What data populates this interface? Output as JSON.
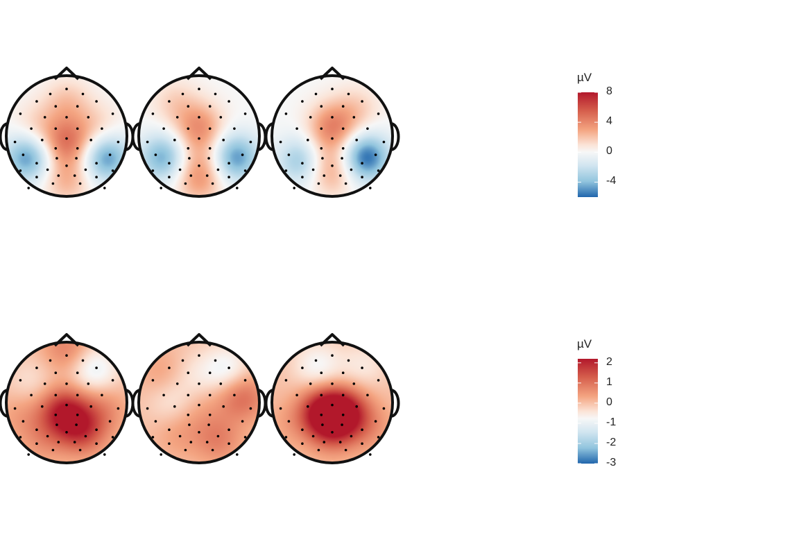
{
  "chart_data": [
    {
      "type": "heatmap",
      "title": "",
      "maps": 3,
      "legend": {
        "unit": "µV",
        "ticks": [
          8,
          4,
          0,
          -4
        ],
        "range": [
          -6,
          8
        ],
        "colors": [
          "#b2182b",
          "#ef8a62",
          "#fddbc7",
          "#f7f7f7",
          "#d1e5f0",
          "#67a9cf",
          "#2166ac"
        ],
        "placement": "right"
      },
      "topographies": [
        {
          "sources": [
            [
              0.0,
              0.1,
              4.5
            ],
            [
              -0.65,
              0.35,
              -5
            ],
            [
              0.65,
              0.35,
              -5
            ],
            [
              -0.5,
              -0.15,
              1.5
            ],
            [
              0.5,
              -0.15,
              1.5
            ],
            [
              0.0,
              0.72,
              2.5
            ],
            [
              0.0,
              -0.55,
              2
            ]
          ]
        },
        {
          "sources": [
            [
              0.0,
              -0.15,
              3.5
            ],
            [
              -0.6,
              0.35,
              -4.5
            ],
            [
              0.6,
              0.35,
              -5
            ],
            [
              0.0,
              0.72,
              3
            ],
            [
              0.0,
              0.35,
              1.5
            ],
            [
              -0.4,
              -0.55,
              1.5
            ]
          ]
        },
        {
          "sources": [
            [
              0.0,
              -0.15,
              4
            ],
            [
              -0.5,
              0.4,
              -4
            ],
            [
              0.55,
              0.35,
              -6
            ],
            [
              0.0,
              0.6,
              2.5
            ],
            [
              -0.2,
              0.35,
              1.5
            ],
            [
              0.4,
              -0.45,
              1.5
            ]
          ]
        }
      ]
    },
    {
      "type": "heatmap",
      "title": "",
      "maps": 3,
      "legend": {
        "unit": "µV",
        "ticks": [
          2,
          1,
          0,
          -1,
          -2,
          -3
        ],
        "range": [
          -3,
          2.2
        ],
        "colors": [
          "#b2182b",
          "#ef8a62",
          "#fddbc7",
          "#f7f7f7",
          "#d1e5f0",
          "#67a9cf",
          "#2166ac"
        ],
        "placement": "right"
      },
      "topographies": [
        {
          "sources": [
            [
              -0.05,
              0.15,
              2.0
            ],
            [
              0.25,
              0.45,
              1.5
            ],
            [
              0.45,
              -0.55,
              -1.0
            ],
            [
              0.0,
              -0.9,
              0.8
            ],
            [
              -0.6,
              -0.35,
              -0.4
            ],
            [
              -0.75,
              0.2,
              0.4
            ],
            [
              -0.4,
              0.6,
              0.5
            ],
            [
              0.6,
              0.1,
              0.6
            ]
          ]
        },
        {
          "sources": [
            [
              0.7,
              -0.1,
              1.1
            ],
            [
              0.45,
              -0.55,
              -0.9
            ],
            [
              -0.1,
              -0.45,
              -0.4
            ],
            [
              -0.6,
              -0.5,
              0.4
            ],
            [
              0.3,
              0.6,
              0.8
            ],
            [
              -0.35,
              0.5,
              0.4
            ],
            [
              -0.45,
              0.0,
              -0.5
            ],
            [
              0.0,
              0.1,
              0.3
            ]
          ]
        },
        {
          "sources": [
            [
              -0.15,
              0.15,
              2.2
            ],
            [
              0.2,
              0.15,
              2.0
            ],
            [
              0.0,
              0.45,
              1.0
            ],
            [
              -0.25,
              -0.6,
              -0.8
            ],
            [
              0.5,
              -0.6,
              -0.5
            ],
            [
              -0.7,
              0.35,
              0.3
            ],
            [
              0.6,
              0.4,
              0.5
            ]
          ]
        }
      ]
    }
  ],
  "electrodes": [
    [
      0.0,
      -0.95
    ],
    [
      -0.3,
      -0.85
    ],
    [
      0.3,
      -0.85
    ],
    [
      -0.55,
      -0.7
    ],
    [
      -0.2,
      -0.6
    ],
    [
      0.2,
      -0.6
    ],
    [
      0.55,
      -0.7
    ],
    [
      -0.85,
      -0.45
    ],
    [
      -0.4,
      -0.38
    ],
    [
      0.0,
      -0.38
    ],
    [
      0.4,
      -0.38
    ],
    [
      0.85,
      -0.45
    ],
    [
      -0.65,
      -0.15
    ],
    [
      -0.2,
      -0.15
    ],
    [
      0.2,
      -0.15
    ],
    [
      0.65,
      -0.15
    ],
    [
      -0.95,
      0.12
    ],
    [
      -0.45,
      0.08
    ],
    [
      0.0,
      0.05
    ],
    [
      0.45,
      0.08
    ],
    [
      0.95,
      0.12
    ],
    [
      -0.8,
      0.38
    ],
    [
      -0.2,
      0.25
    ],
    [
      0.2,
      0.25
    ],
    [
      0.8,
      0.38
    ],
    [
      -0.55,
      0.55
    ],
    [
      -0.18,
      0.45
    ],
    [
      0.18,
      0.45
    ],
    [
      0.55,
      0.55
    ],
    [
      -0.85,
      0.7
    ],
    [
      -0.35,
      0.68
    ],
    [
      0.0,
      0.6
    ],
    [
      0.35,
      0.68
    ],
    [
      0.85,
      0.7
    ],
    [
      -0.55,
      0.83
    ],
    [
      -0.15,
      0.8
    ],
    [
      0.15,
      0.8
    ],
    [
      0.55,
      0.83
    ],
    [
      -0.25,
      0.96
    ],
    [
      0.25,
      0.96
    ],
    [
      -0.7,
      1.05
    ],
    [
      0.7,
      1.05
    ]
  ]
}
